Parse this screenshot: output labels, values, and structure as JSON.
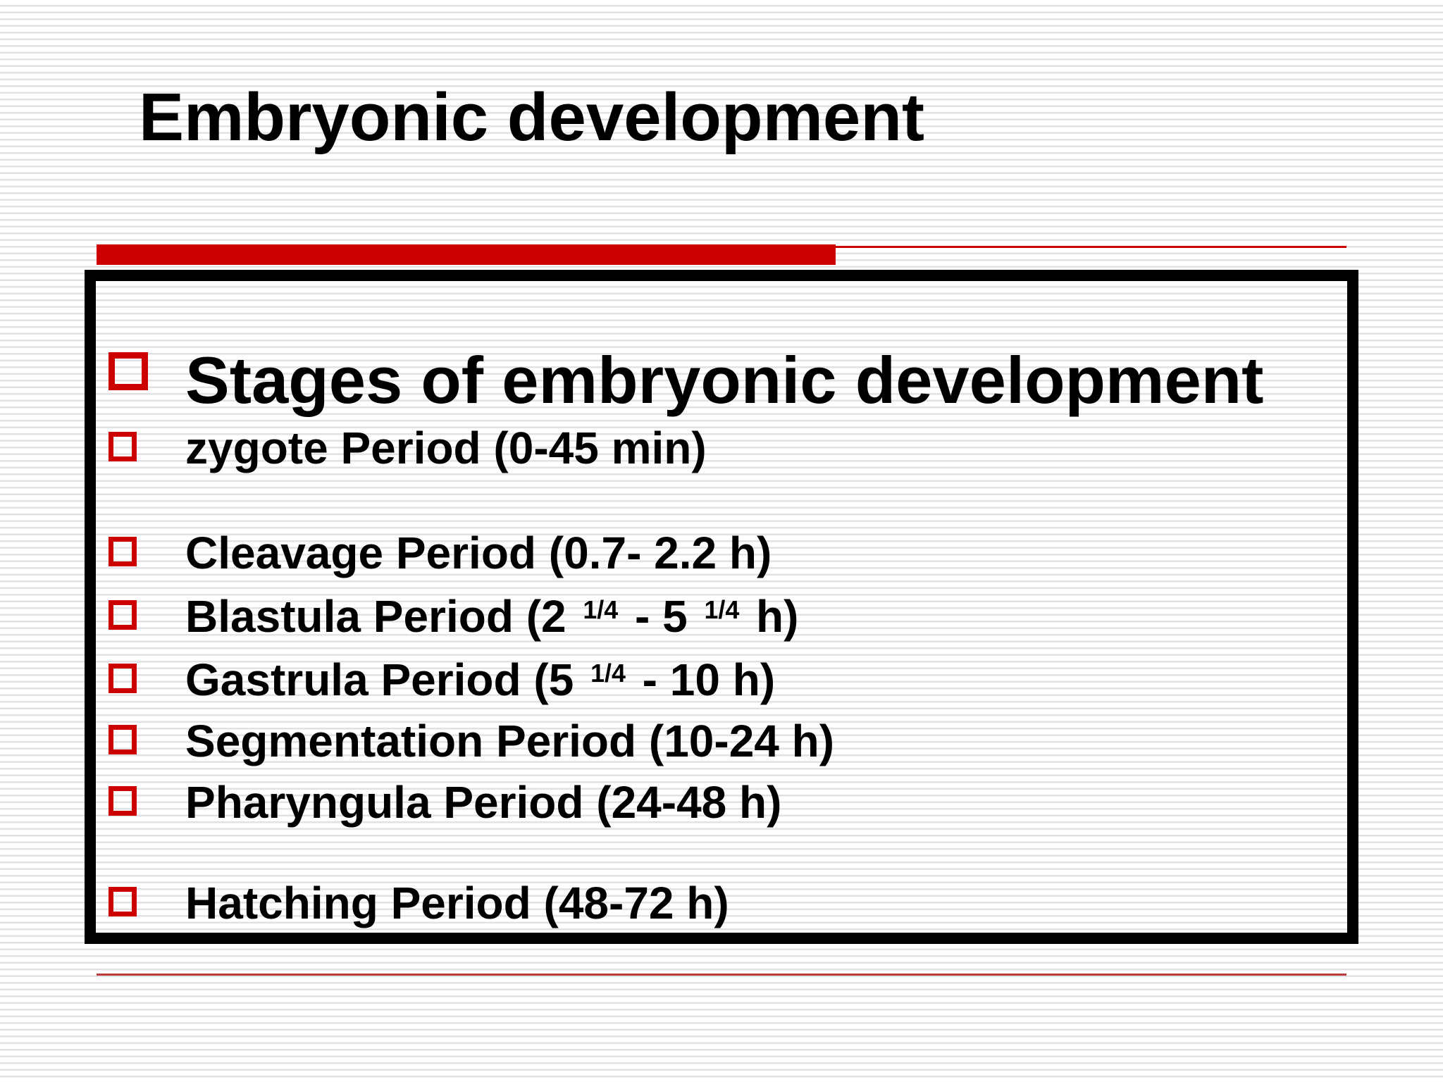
{
  "slide": {
    "title": "Embryonic development",
    "accent_color": "#cc0000",
    "box_border_color": "#000000",
    "bullet_icon": "hollow-red-square",
    "stages": [
      {
        "style": "heading",
        "label_segments": [
          {
            "text": "Stages of embryonic development"
          }
        ]
      },
      {
        "label_segments": [
          {
            "text": "zygote Period (0-45 min)"
          }
        ]
      },
      {
        "gap_before": true,
        "label_segments": [
          {
            "text": "Cleavage Period (0.7- 2.2 h)"
          }
        ]
      },
      {
        "label_segments": [
          {
            "text": "Blastula Period (2 "
          },
          {
            "text": "1/4",
            "sup": true
          },
          {
            "text": " - 5 "
          },
          {
            "text": "1/4",
            "sup": true
          },
          {
            "text": " h)"
          }
        ]
      },
      {
        "label_segments": [
          {
            "text": "Gastrula Period (5 "
          },
          {
            "text": "1/4",
            "sup": true
          },
          {
            "text": " - 10 h)"
          }
        ]
      },
      {
        "label_segments": [
          {
            "text": "Segmentation Period (10-24 h)"
          }
        ]
      },
      {
        "label_segments": [
          {
            "text": "Pharyngula Period (24-48 h)"
          }
        ]
      },
      {
        "gap_before": true,
        "label_segments": [
          {
            "text": "Hatching Period (48-72 h)"
          }
        ]
      }
    ]
  }
}
